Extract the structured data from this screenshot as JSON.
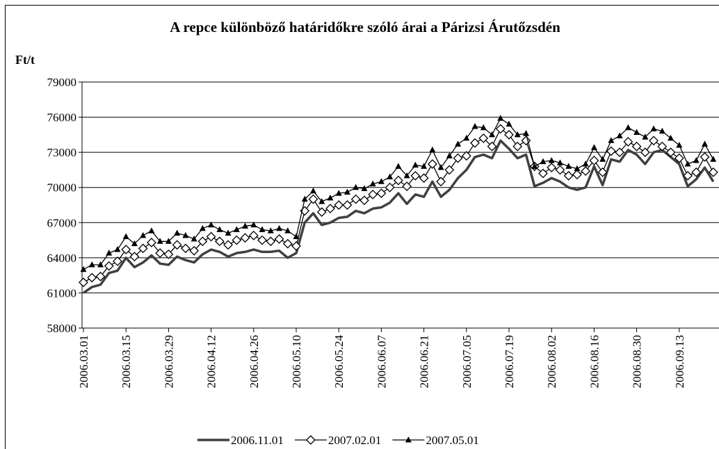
{
  "chart_data": {
    "type": "line",
    "title": "A repce különböző határidőkre szóló árai a Párizsi Árutőzsdén",
    "y_label": "Ft/t",
    "categories": [
      "2006.03.01",
      null,
      null,
      null,
      null,
      "2006.03.15",
      null,
      null,
      null,
      null,
      "2006.03.29",
      null,
      null,
      null,
      null,
      "2006.04.12",
      null,
      null,
      null,
      null,
      "2006.04.26",
      null,
      null,
      null,
      null,
      "2006.05.10",
      null,
      null,
      null,
      null,
      "2006.05.24",
      null,
      null,
      null,
      null,
      "2006.06.07",
      null,
      null,
      null,
      null,
      "2006.06.21",
      null,
      null,
      null,
      null,
      "2006.07.05",
      null,
      null,
      null,
      null,
      "2006.07.19",
      null,
      null,
      null,
      null,
      "2006.08.02",
      null,
      null,
      null,
      null,
      "2006.08.16",
      null,
      null,
      null,
      null,
      "2006.08.30",
      null,
      null,
      null,
      null,
      "2006.09.13",
      null,
      null,
      null,
      null
    ],
    "series": [
      {
        "name": "2006.11.01",
        "color": "#404040",
        "marker": "none",
        "values": [
          61000,
          61500,
          61700,
          62700,
          62900,
          64000,
          63200,
          63600,
          64200,
          63500,
          63400,
          64100,
          63800,
          63600,
          64300,
          64700,
          64500,
          64100,
          64400,
          64500,
          64700,
          64500,
          64500,
          64600,
          64000,
          64400,
          67000,
          67800,
          66800,
          67000,
          67400,
          67500,
          68000,
          67800,
          68200,
          68300,
          68700,
          69500,
          68600,
          69400,
          69200,
          70500,
          69200,
          69800,
          70800,
          71500,
          72600,
          72800,
          72500,
          74000,
          73300,
          72500,
          72800,
          70100,
          70400,
          70800,
          70500,
          70000,
          69800,
          70000,
          71800,
          70200,
          72400,
          72200,
          73200,
          72800,
          72000,
          73000,
          73200,
          72600,
          72000,
          70100,
          70700,
          71700,
          70500
        ]
      },
      {
        "name": "2007.02.01",
        "color": "#000000",
        "marker": "diamond",
        "values": [
          61900,
          62300,
          62400,
          63300,
          63700,
          64700,
          64100,
          64800,
          65300,
          64400,
          64300,
          65100,
          64800,
          64600,
          65400,
          65800,
          65400,
          65100,
          65500,
          65700,
          65900,
          65500,
          65400,
          65600,
          65200,
          65000,
          68000,
          69000,
          67900,
          68200,
          68500,
          68500,
          69000,
          68900,
          69400,
          69500,
          70000,
          70600,
          70100,
          71000,
          70800,
          72000,
          70500,
          71500,
          72500,
          72700,
          73800,
          74200,
          73500,
          75000,
          74500,
          73500,
          74000,
          71800,
          71200,
          71700,
          71500,
          71000,
          71100,
          71400,
          72300,
          71300,
          73100,
          73000,
          73900,
          73500,
          73000,
          74000,
          73500,
          73000,
          72500,
          71000,
          71300,
          72600,
          71300
        ]
      },
      {
        "name": "2007.05.01",
        "color": "#000000",
        "marker": "triangle",
        "values": [
          63000,
          63400,
          63400,
          64400,
          64700,
          65800,
          65200,
          65900,
          66300,
          65400,
          65400,
          66100,
          65900,
          65600,
          66500,
          66800,
          66400,
          66100,
          66400,
          66700,
          66800,
          66400,
          66300,
          66500,
          66300,
          65800,
          69000,
          69700,
          68800,
          69100,
          69500,
          69600,
          70000,
          69900,
          70300,
          70500,
          70900,
          71800,
          71000,
          71900,
          71800,
          73200,
          71700,
          72700,
          73700,
          74200,
          75200,
          75100,
          74500,
          75900,
          75400,
          74500,
          74600,
          71800,
          72200,
          72300,
          72100,
          71800,
          71600,
          72000,
          73400,
          72400,
          74000,
          74400,
          75100,
          74700,
          74300,
          75000,
          74800,
          74200,
          73600,
          72000,
          72300,
          73700,
          72400
        ]
      }
    ],
    "ylim": [
      58000,
      79000
    ],
    "yticks": [
      58000,
      61000,
      64000,
      67000,
      70000,
      73000,
      76000,
      79000
    ],
    "grid": true,
    "legend": "bottom"
  }
}
